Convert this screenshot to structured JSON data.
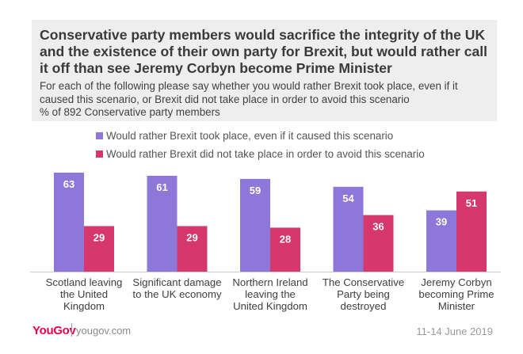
{
  "header": {
    "title": "Conservative party members would sacrifice the integrity of the UK and the existence of their own party for Brexit, but would rather call it off than see Jeremy Corbyn become Prime Minister",
    "subtitle": "For each of the following please say whether you would rather Brexit took place, even if it caused this scenario, or Brexit did not take place in order to avoid this scenario",
    "base": "% of 892 Conservative party members"
  },
  "footer": {
    "logo": "YouGov",
    "site": "yougov.com",
    "date": "11-14 June 2019"
  },
  "colors": {
    "purple": "#8d77d9",
    "pink": "#d6386e",
    "header_bg": "#eeeeee"
  },
  "chart_data": {
    "type": "bar",
    "categories": [
      [
        "Scotland leaving",
        "the United",
        "Kingdom"
      ],
      [
        "Significant damage",
        "to the UK economy"
      ],
      [
        "Northern Ireland",
        "leaving the",
        "United Kingdom"
      ],
      [
        "The Conservative",
        "Party being",
        "destroyed"
      ],
      [
        "Jeremy Corbyn",
        "becoming Prime",
        "Minister"
      ]
    ],
    "series": [
      {
        "name": "Would rather Brexit took place, even if it caused this scenario",
        "values": [
          63,
          61,
          59,
          54,
          39
        ]
      },
      {
        "name": "Would rather Brexit did not take place in order to avoid this scenario",
        "values": [
          29,
          29,
          28,
          36,
          51
        ]
      }
    ],
    "ylim": [
      0,
      63
    ],
    "grid": false,
    "legend": "top-left"
  }
}
